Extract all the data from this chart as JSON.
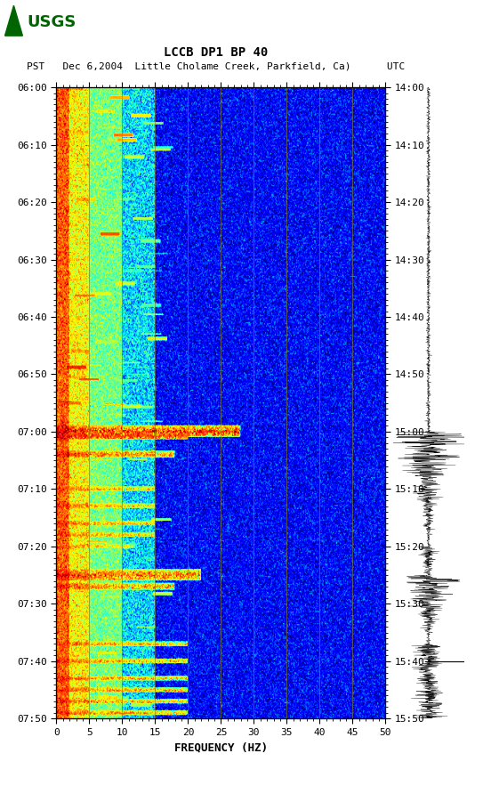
{
  "title_line1": "LCCB DP1 BP 40",
  "title_line2": "PST   Dec 6,2004  Little Cholame Creek, Parkfield, Ca)      UTC",
  "xlabel": "FREQUENCY (HZ)",
  "freq_min": 0,
  "freq_max": 50,
  "freq_ticks": [
    0,
    5,
    10,
    15,
    20,
    25,
    30,
    35,
    40,
    45,
    50
  ],
  "freq_tick_labels": [
    "0",
    "5",
    "10",
    "15",
    "20",
    "25",
    "30",
    "35",
    "40",
    "45",
    "50"
  ],
  "time_left_labels": [
    "06:00",
    "06:10",
    "06:20",
    "06:30",
    "06:40",
    "06:50",
    "07:00",
    "07:10",
    "07:20",
    "07:30",
    "07:40",
    "07:50"
  ],
  "time_right_labels": [
    "14:00",
    "14:10",
    "14:20",
    "14:30",
    "14:40",
    "14:50",
    "15:00",
    "15:10",
    "15:20",
    "15:30",
    "15:40",
    "15:50"
  ],
  "time_tick_minutes": [
    0,
    10,
    20,
    30,
    40,
    50,
    60,
    70,
    80,
    90,
    100,
    110
  ],
  "time_total_minutes": 110,
  "grid_freq_lines": [
    5,
    10,
    15,
    20,
    25,
    30,
    35,
    40,
    45
  ],
  "colormap": "jet",
  "background_color": "#ffffff",
  "vline_color": "#8B8000",
  "logo_color": "#006400",
  "font_family": "monospace",
  "n_time": 550,
  "n_freq": 500,
  "seed": 42
}
